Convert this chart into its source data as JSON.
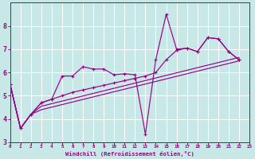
{
  "xlabel": "Windchill (Refroidissement éolien,°C)",
  "background_color": "#c8e8e8",
  "grid_color": "#ffffff",
  "line_color": "#990088",
  "xlim": [
    0,
    23
  ],
  "ylim": [
    3,
    9
  ],
  "yticks": [
    3,
    4,
    5,
    6,
    7,
    8
  ],
  "xticks": [
    0,
    1,
    2,
    3,
    4,
    5,
    6,
    7,
    8,
    9,
    10,
    11,
    12,
    13,
    14,
    15,
    16,
    17,
    18,
    19,
    20,
    21,
    22,
    23
  ],
  "series": [
    {
      "x": [
        0,
        1,
        2,
        3,
        4,
        5,
        6,
        7,
        8,
        9,
        10,
        11,
        12,
        13,
        14,
        15,
        16,
        17,
        18,
        19,
        20,
        21,
        22
      ],
      "y": [
        5.5,
        3.6,
        4.2,
        4.7,
        4.85,
        5.85,
        5.85,
        6.25,
        6.15,
        6.15,
        5.9,
        5.95,
        5.9,
        3.35,
        6.55,
        8.5,
        7.0,
        7.05,
        6.9,
        7.5,
        7.45,
        6.9,
        6.55
      ]
    },
    {
      "x": [
        0,
        1,
        2,
        3,
        4,
        5,
        6,
        7,
        8,
        9,
        10,
        11,
        12,
        13,
        14,
        15,
        16,
        17,
        18,
        19,
        20,
        21,
        22
      ],
      "y": [
        5.5,
        3.6,
        4.2,
        4.7,
        4.85,
        5.0,
        5.15,
        5.25,
        5.35,
        5.45,
        5.55,
        5.65,
        5.75,
        5.85,
        6.0,
        6.55,
        6.95,
        7.05,
        6.9,
        7.5,
        7.45,
        6.9,
        6.55
      ]
    },
    {
      "x": [
        0,
        1,
        2,
        3,
        22
      ],
      "y": [
        5.5,
        3.6,
        4.2,
        4.4,
        6.5
      ]
    },
    {
      "x": [
        0,
        1,
        2,
        3,
        22
      ],
      "y": [
        5.5,
        3.6,
        4.2,
        4.55,
        6.65
      ]
    }
  ],
  "marker_series": [
    {
      "x": [
        0,
        1,
        2,
        3,
        4,
        5,
        6,
        7,
        8,
        9,
        10,
        11,
        12,
        13,
        14,
        15,
        16,
        17,
        18,
        19,
        20,
        21,
        22
      ],
      "y": [
        5.5,
        3.6,
        4.2,
        4.7,
        4.85,
        5.85,
        5.85,
        6.25,
        6.15,
        6.15,
        5.9,
        5.95,
        5.9,
        3.35,
        6.55,
        8.5,
        7.0,
        7.05,
        6.9,
        7.5,
        7.45,
        6.9,
        6.55
      ]
    },
    {
      "x": [
        0,
        1,
        2,
        3,
        4,
        5,
        6,
        7,
        8,
        9,
        10,
        11,
        12,
        13,
        14,
        15,
        16,
        17,
        18,
        19,
        20,
        21,
        22
      ],
      "y": [
        5.5,
        3.6,
        4.2,
        4.7,
        4.85,
        5.0,
        5.15,
        5.25,
        5.35,
        5.45,
        5.55,
        5.65,
        5.75,
        5.85,
        6.0,
        6.55,
        6.95,
        7.05,
        6.9,
        7.5,
        7.45,
        6.9,
        6.55
      ]
    }
  ]
}
